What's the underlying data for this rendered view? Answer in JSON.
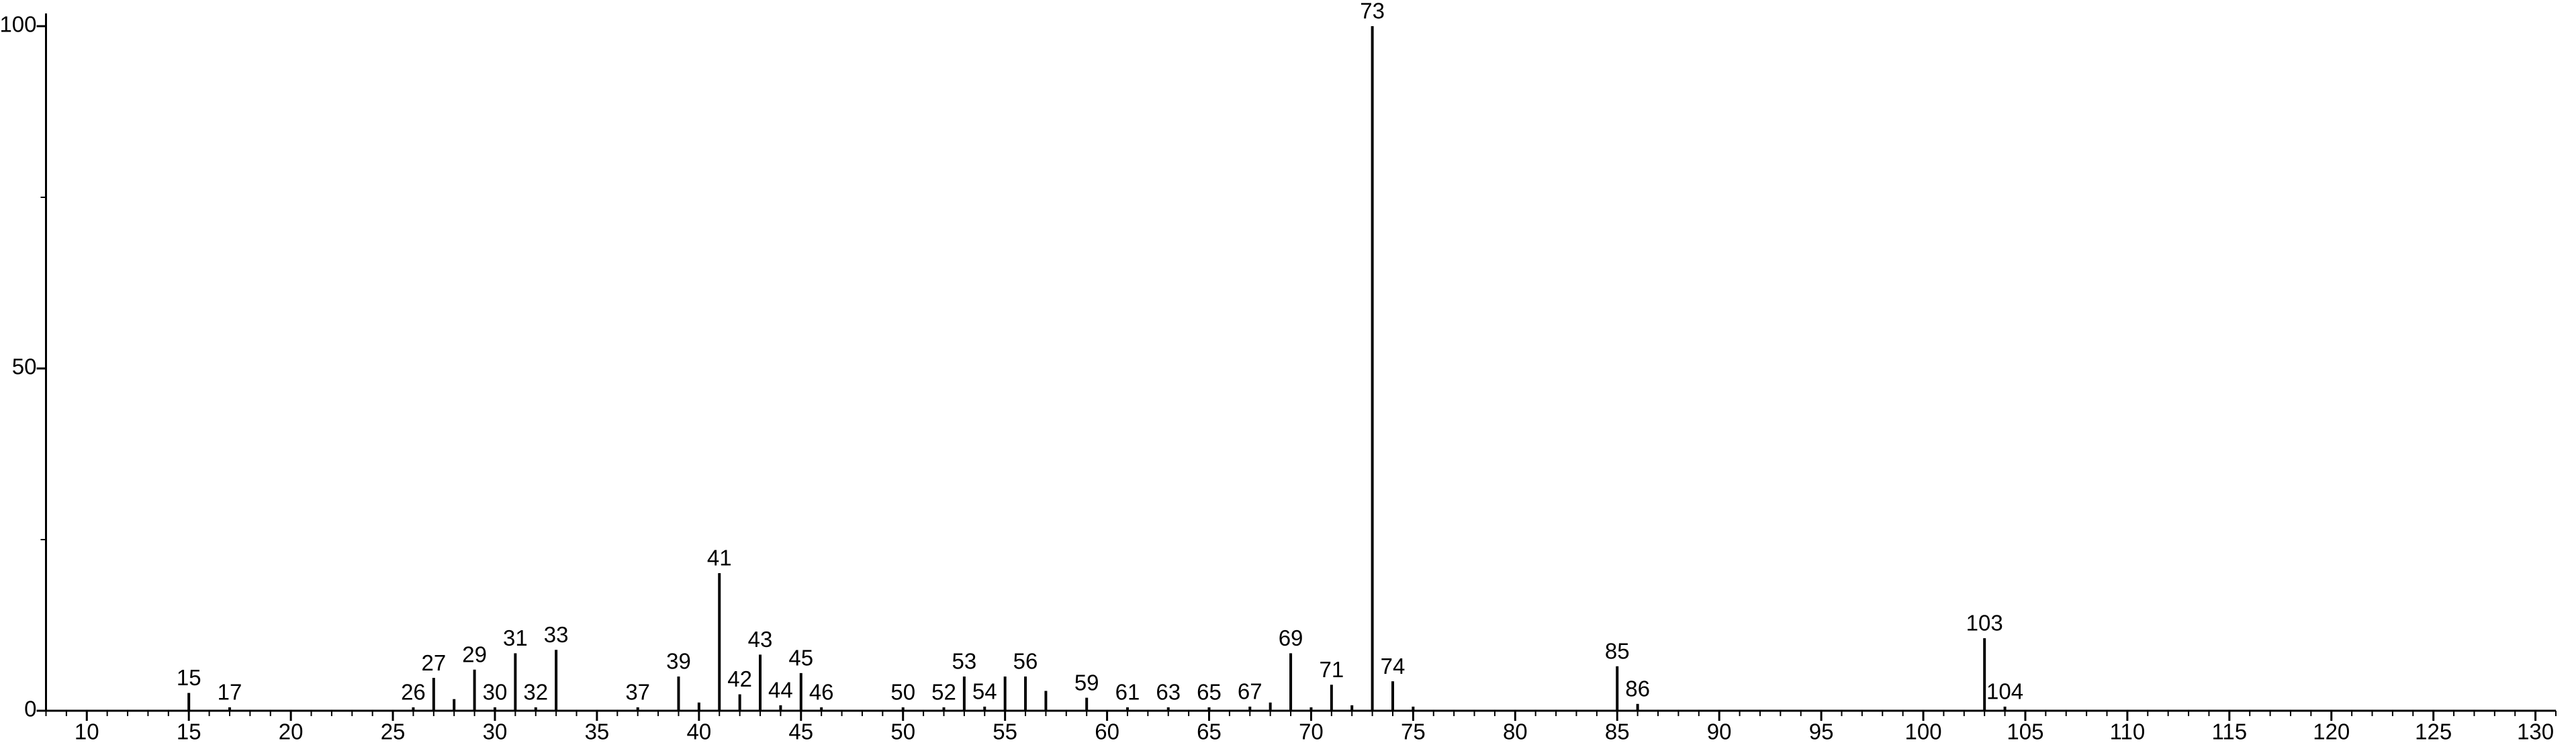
{
  "chart_data": {
    "type": "stick",
    "x": [
      15,
      17,
      26,
      27,
      28,
      29,
      30,
      31,
      32,
      33,
      37,
      39,
      40,
      41,
      42,
      43,
      44,
      45,
      46,
      50,
      52,
      53,
      54,
      55,
      56,
      57,
      59,
      61,
      63,
      65,
      67,
      68,
      69,
      70,
      71,
      72,
      73,
      74,
      75,
      85,
      86,
      103,
      104
    ],
    "values": [
      2.6,
      0.5,
      0.5,
      4.8,
      1.7,
      6,
      0.5,
      8.4,
      0.5,
      8.9,
      0.5,
      5,
      1.2,
      20.1,
      2.4,
      8.2,
      0.8,
      5.5,
      0.5,
      0.5,
      0.5,
      5,
      0.6,
      5,
      5,
      2.9,
      1.9,
      0.5,
      0.5,
      0.5,
      0.6,
      1.2,
      8.4,
      0.5,
      3.8,
      0.8,
      100,
      4.3,
      0.6,
      6.5,
      1,
      10.6,
      0.6
    ],
    "peak_labels": [
      "15",
      "17",
      "26",
      "27",
      null,
      "29",
      "30",
      "31",
      "32",
      "33",
      "37",
      "39",
      null,
      "41",
      "42",
      "43",
      "44",
      "45",
      "46",
      "50",
      "52",
      "53",
      "54",
      null,
      "56",
      null,
      "59",
      "61",
      "63",
      "65",
      "67",
      null,
      "69",
      null,
      "71",
      null,
      "73",
      "74",
      null,
      "85",
      "86",
      "103",
      "104"
    ],
    "color": "#000000",
    "xlim": [
      8,
      131
    ],
    "xticks": [
      10,
      15,
      20,
      25,
      30,
      35,
      40,
      45,
      50,
      55,
      60,
      65,
      70,
      75,
      80,
      85,
      90,
      95,
      100,
      105,
      110,
      115,
      120,
      125,
      130
    ],
    "xminorticks": [
      8,
      9,
      11,
      12,
      13,
      14,
      16,
      17,
      18,
      19,
      21,
      22,
      23,
      24,
      26,
      27,
      28,
      29,
      31,
      32,
      33,
      34,
      36,
      37,
      38,
      39,
      41,
      42,
      43,
      44,
      46,
      47,
      48,
      49,
      51,
      52,
      53,
      54,
      56,
      57,
      58,
      59,
      61,
      62,
      63,
      64,
      66,
      67,
      68,
      69,
      71,
      72,
      73,
      74,
      76,
      77,
      78,
      79,
      81,
      82,
      83,
      84,
      86,
      87,
      88,
      89,
      91,
      92,
      93,
      94,
      96,
      97,
      98,
      99,
      101,
      102,
      103,
      104,
      106,
      107,
      108,
      109,
      111,
      112,
      113,
      114,
      116,
      117,
      118,
      119,
      121,
      122,
      123,
      124,
      126,
      127,
      128,
      129,
      131
    ],
    "ylim": [
      0,
      100
    ],
    "yticks": [
      0,
      50,
      100
    ],
    "yminorticks": [
      25,
      75
    ]
  }
}
